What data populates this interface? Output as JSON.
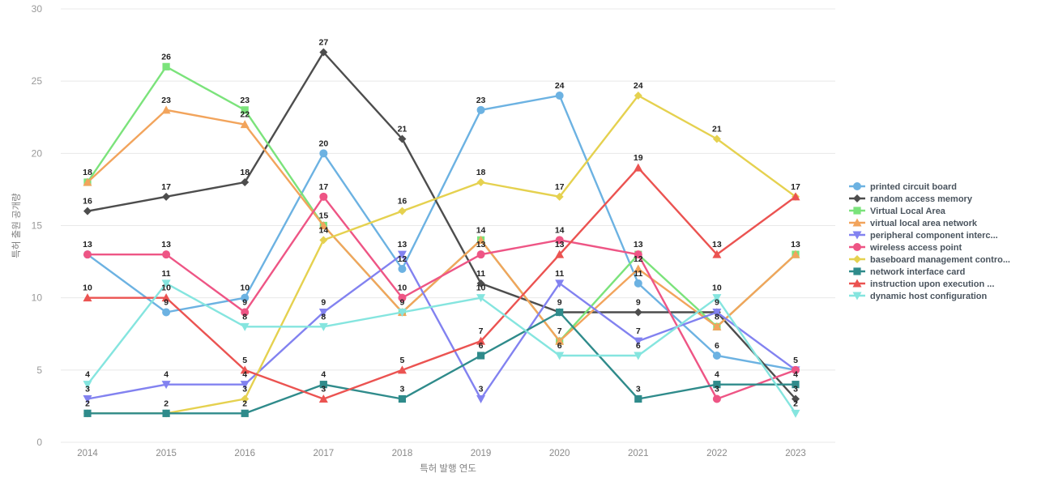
{
  "chart_data": {
    "type": "line",
    "title": "",
    "xlabel": "특허 발행 연도",
    "ylabel": "특허 출원 공개량",
    "x": [
      2014,
      2015,
      2016,
      2017,
      2018,
      2019,
      2020,
      2021,
      2022,
      2023
    ],
    "ylim": [
      0,
      30
    ],
    "yticks": [
      0,
      5,
      10,
      15,
      20,
      25,
      30
    ],
    "grid": true,
    "legend_position": "right",
    "colors": {
      "grid": "#e8e8e8",
      "tick_text": "#999999",
      "axis_title_text": "#808080",
      "data_label_text": "#222222",
      "legend_text": "#4a545e"
    },
    "series": [
      {
        "name": "printed circuit board",
        "color": "#6cb2e2",
        "marker": "circle",
        "values": [
          13,
          9,
          10,
          20,
          12,
          23,
          24,
          11,
          6,
          5
        ]
      },
      {
        "name": "random access memory",
        "color": "#4d4d4d",
        "marker": "diamond",
        "values": [
          16,
          17,
          18,
          27,
          21,
          11,
          9,
          9,
          9,
          3
        ]
      },
      {
        "name": "Virtual Local Area",
        "color": "#7be37b",
        "marker": "square",
        "values": [
          18,
          26,
          23,
          15,
          9,
          14,
          7,
          13,
          8,
          13
        ]
      },
      {
        "name": "virtual local area network",
        "color": "#f2a45c",
        "marker": "triangle-up",
        "values": [
          18,
          23,
          22,
          15,
          9,
          14,
          7,
          12,
          8,
          13
        ]
      },
      {
        "name": "peripheral component interc...",
        "color": "#8282f0",
        "marker": "triangle-down",
        "values": [
          3,
          4,
          4,
          9,
          13,
          3,
          11,
          7,
          9,
          5
        ]
      },
      {
        "name": "wireless access point",
        "color": "#ee5585",
        "marker": "circle",
        "values": [
          13,
          13,
          9,
          17,
          10,
          13,
          14,
          13,
          3,
          5
        ]
      },
      {
        "name": "baseboard management contro...",
        "color": "#e5d14f",
        "marker": "diamond",
        "values": [
          2,
          2,
          3,
          14,
          16,
          18,
          17,
          24,
          21,
          17
        ]
      },
      {
        "name": "network interface card",
        "color": "#2f8b8b",
        "marker": "square",
        "values": [
          2,
          2,
          2,
          4,
          3,
          6,
          9,
          3,
          4,
          4
        ]
      },
      {
        "name": "instruction upon execution ...",
        "color": "#eb5351",
        "marker": "triangle-up",
        "values": [
          10,
          10,
          5,
          3,
          5,
          7,
          13,
          19,
          13,
          17
        ]
      },
      {
        "name": "dynamic host configuration",
        "color": "#85e5df",
        "marker": "triangle-down",
        "values": [
          4,
          11,
          8,
          8,
          9,
          10,
          6,
          6,
          10,
          2
        ]
      }
    ]
  }
}
